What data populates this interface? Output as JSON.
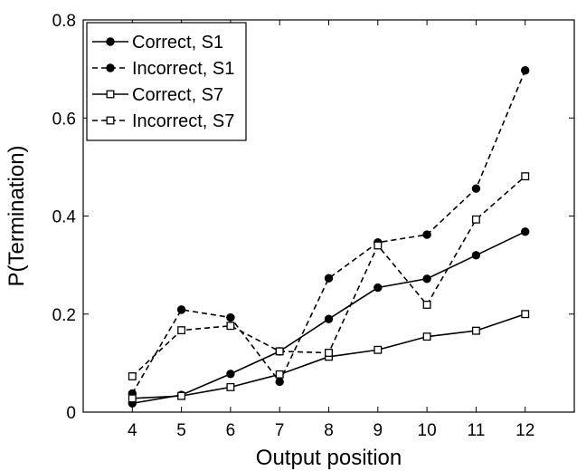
{
  "chart_data": {
    "type": "line",
    "title": "",
    "xlabel": "Output position",
    "ylabel": "P(Termination)",
    "xlim": [
      3,
      13
    ],
    "ylim": [
      0,
      0.8
    ],
    "xticks": [
      4,
      5,
      6,
      7,
      8,
      9,
      10,
      11,
      12
    ],
    "xtick_labels": [
      "4",
      "5",
      "6",
      "7",
      "8",
      "9",
      "10",
      "11",
      "12"
    ],
    "yticks": [
      0,
      0.2,
      0.4,
      0.6,
      0.8
    ],
    "ytick_labels": [
      "0",
      "0.2",
      "0.4",
      "0.6",
      "0.8"
    ],
    "grid": false,
    "legend_position": "top-left",
    "x": [
      4,
      5,
      6,
      7,
      8,
      9,
      10,
      11,
      12
    ],
    "series": [
      {
        "name": "Correct, S1",
        "line_style": "solid",
        "marker": "filled-circle",
        "color": "#000000",
        "values": [
          0.018,
          0.035,
          0.078,
          0.124,
          0.19,
          0.254,
          0.272,
          0.32,
          0.368
        ]
      },
      {
        "name": "Incorrect, S1",
        "line_style": "dashed",
        "marker": "filled-circle",
        "color": "#000000",
        "values": [
          0.038,
          0.209,
          0.193,
          0.062,
          0.273,
          0.346,
          0.362,
          0.456,
          0.697
        ]
      },
      {
        "name": "Correct, S7",
        "line_style": "solid",
        "marker": "open-square",
        "color": "#000000",
        "values": [
          0.028,
          0.033,
          0.051,
          0.077,
          0.113,
          0.127,
          0.154,
          0.166,
          0.2
        ]
      },
      {
        "name": "Incorrect, S7",
        "line_style": "dashed",
        "marker": "open-square",
        "color": "#000000",
        "values": [
          0.073,
          0.167,
          0.176,
          0.124,
          0.121,
          0.34,
          0.219,
          0.393,
          0.481
        ]
      }
    ]
  }
}
